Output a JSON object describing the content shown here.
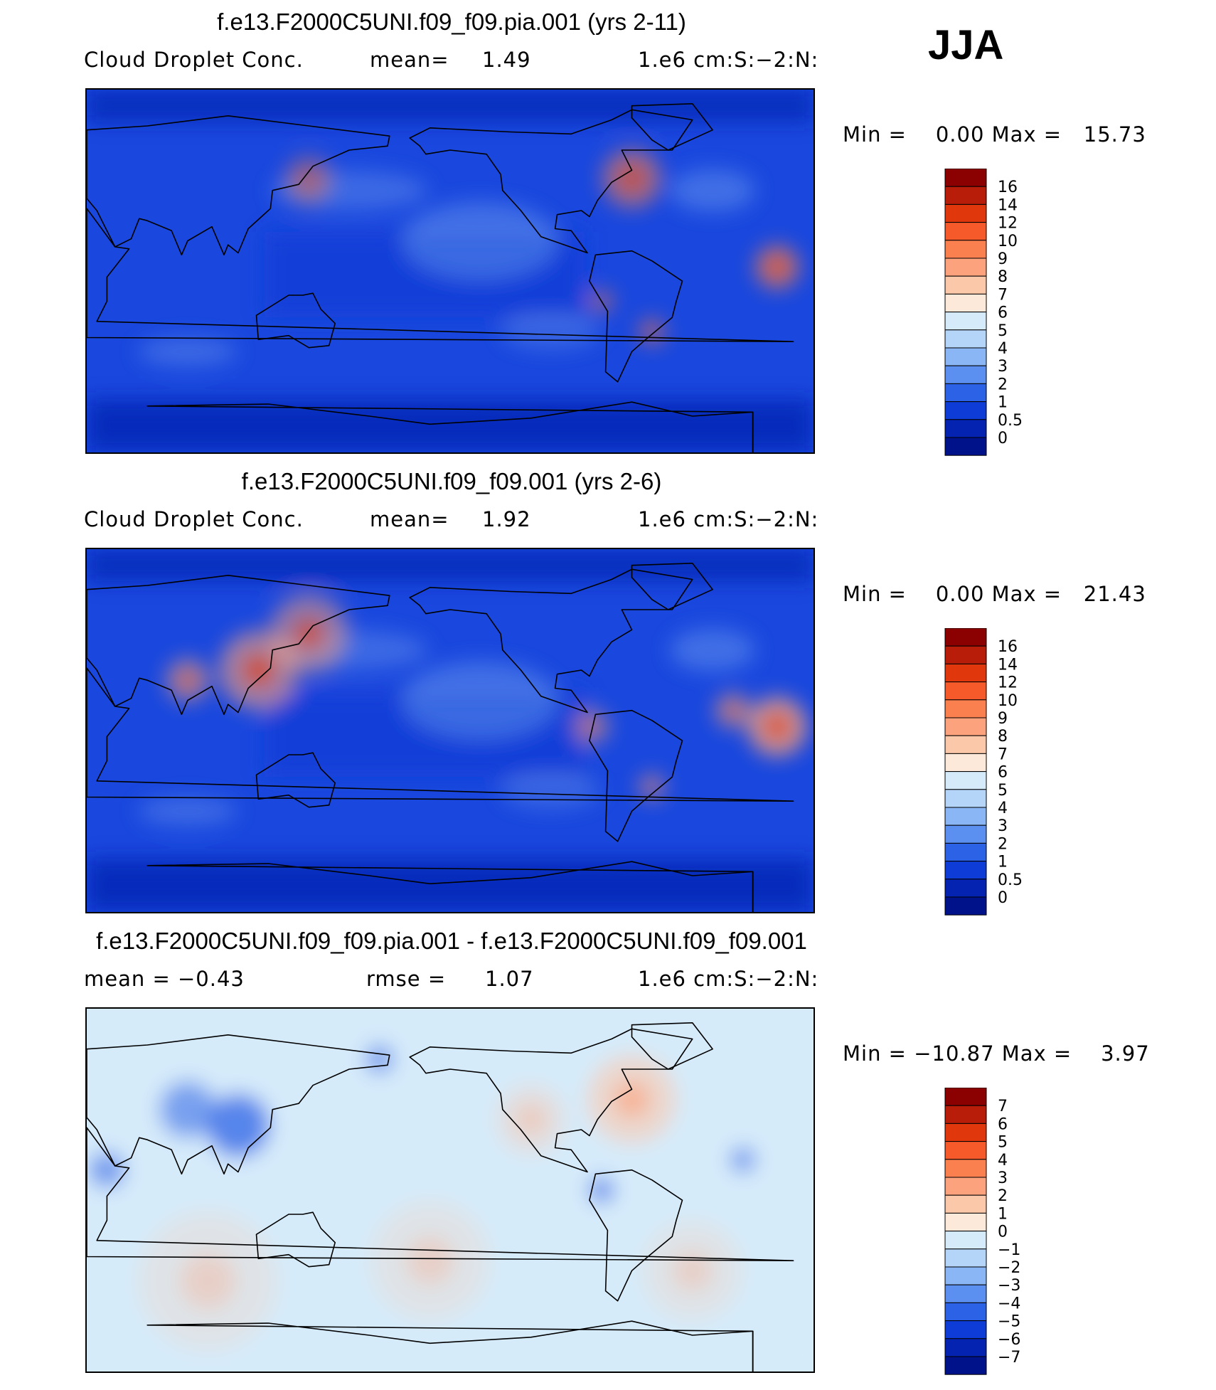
{
  "season": "JJA",
  "panels": [
    {
      "title": "f.e13.F2000C5UNI.f09_f09.pia.001 (yrs 2-11)",
      "left_label": "Cloud Droplet Conc.",
      "stat_label": "mean=",
      "stat_value": "1.49",
      "units": "1.e6 cm:S:−2:N:",
      "minmax": "Min =    0.00 Max =   15.73",
      "levels": [
        "16",
        "14",
        "12",
        "10",
        "9",
        "8",
        "7",
        "6",
        "5",
        "4",
        "3",
        "2",
        "1",
        "0.5",
        "0"
      ],
      "colors": [
        "#8b0000",
        "#b81d0a",
        "#e0380c",
        "#f65a2a",
        "#fb8050",
        "#fca27d",
        "#fcc8aa",
        "#fde9d9",
        "#d6ebfa",
        "#b4d4f8",
        "#8ab6f5",
        "#5b8ff0",
        "#2c63e6",
        "#0d3cd6",
        "#0423b0",
        "#00128a"
      ],
      "map": {
        "base": "#1a48de",
        "hot": [
          "#fb8050",
          "#e0380c"
        ]
      }
    },
    {
      "title": "f.e13.F2000C5UNI.f09_f09.001 (yrs 2-6)",
      "left_label": "Cloud Droplet Conc.",
      "stat_label": "mean=",
      "stat_value": "1.92",
      "units": "1.e6 cm:S:−2:N:",
      "minmax": "Min =    0.00 Max =   21.43",
      "levels": [
        "16",
        "14",
        "12",
        "10",
        "9",
        "8",
        "7",
        "6",
        "5",
        "4",
        "3",
        "2",
        "1",
        "0.5",
        "0"
      ],
      "colors": [
        "#8b0000",
        "#b81d0a",
        "#e0380c",
        "#f65a2a",
        "#fb8050",
        "#fca27d",
        "#fcc8aa",
        "#fde9d9",
        "#d6ebfa",
        "#b4d4f8",
        "#8ab6f5",
        "#5b8ff0",
        "#2c63e6",
        "#0d3cd6",
        "#0423b0",
        "#00128a"
      ],
      "map": {
        "base": "#1a48de",
        "hot": [
          "#fca27d",
          "#e0380c"
        ]
      }
    },
    {
      "title": "f.e13.F2000C5UNI.f09_f09.pia.001 - f.e13.F2000C5UNI.f09_f09.001",
      "left_label": "mean =   −0.43",
      "stat_label": "rmse =",
      "stat_value": "1.07",
      "units": "1.e6 cm:S:−2:N:",
      "minmax": "Min = −10.87 Max =    3.97",
      "levels": [
        "7",
        "6",
        "5",
        "4",
        "3",
        "2",
        "1",
        "0",
        "−1",
        "−2",
        "−3",
        "−4",
        "−5",
        "−6",
        "−7"
      ],
      "colors": [
        "#8b0000",
        "#b81d0a",
        "#e0380c",
        "#f65a2a",
        "#fb8050",
        "#fca27d",
        "#fcc8aa",
        "#fde9d9",
        "#d6ebfa",
        "#b4d4f8",
        "#8ab6f5",
        "#5b8ff0",
        "#2c63e6",
        "#0d3cd6",
        "#0423b0",
        "#00128a"
      ],
      "map": {
        "base": "#d6ebfa",
        "hot": [
          "#fcc8aa",
          "#fca27d"
        ]
      }
    }
  ]
}
